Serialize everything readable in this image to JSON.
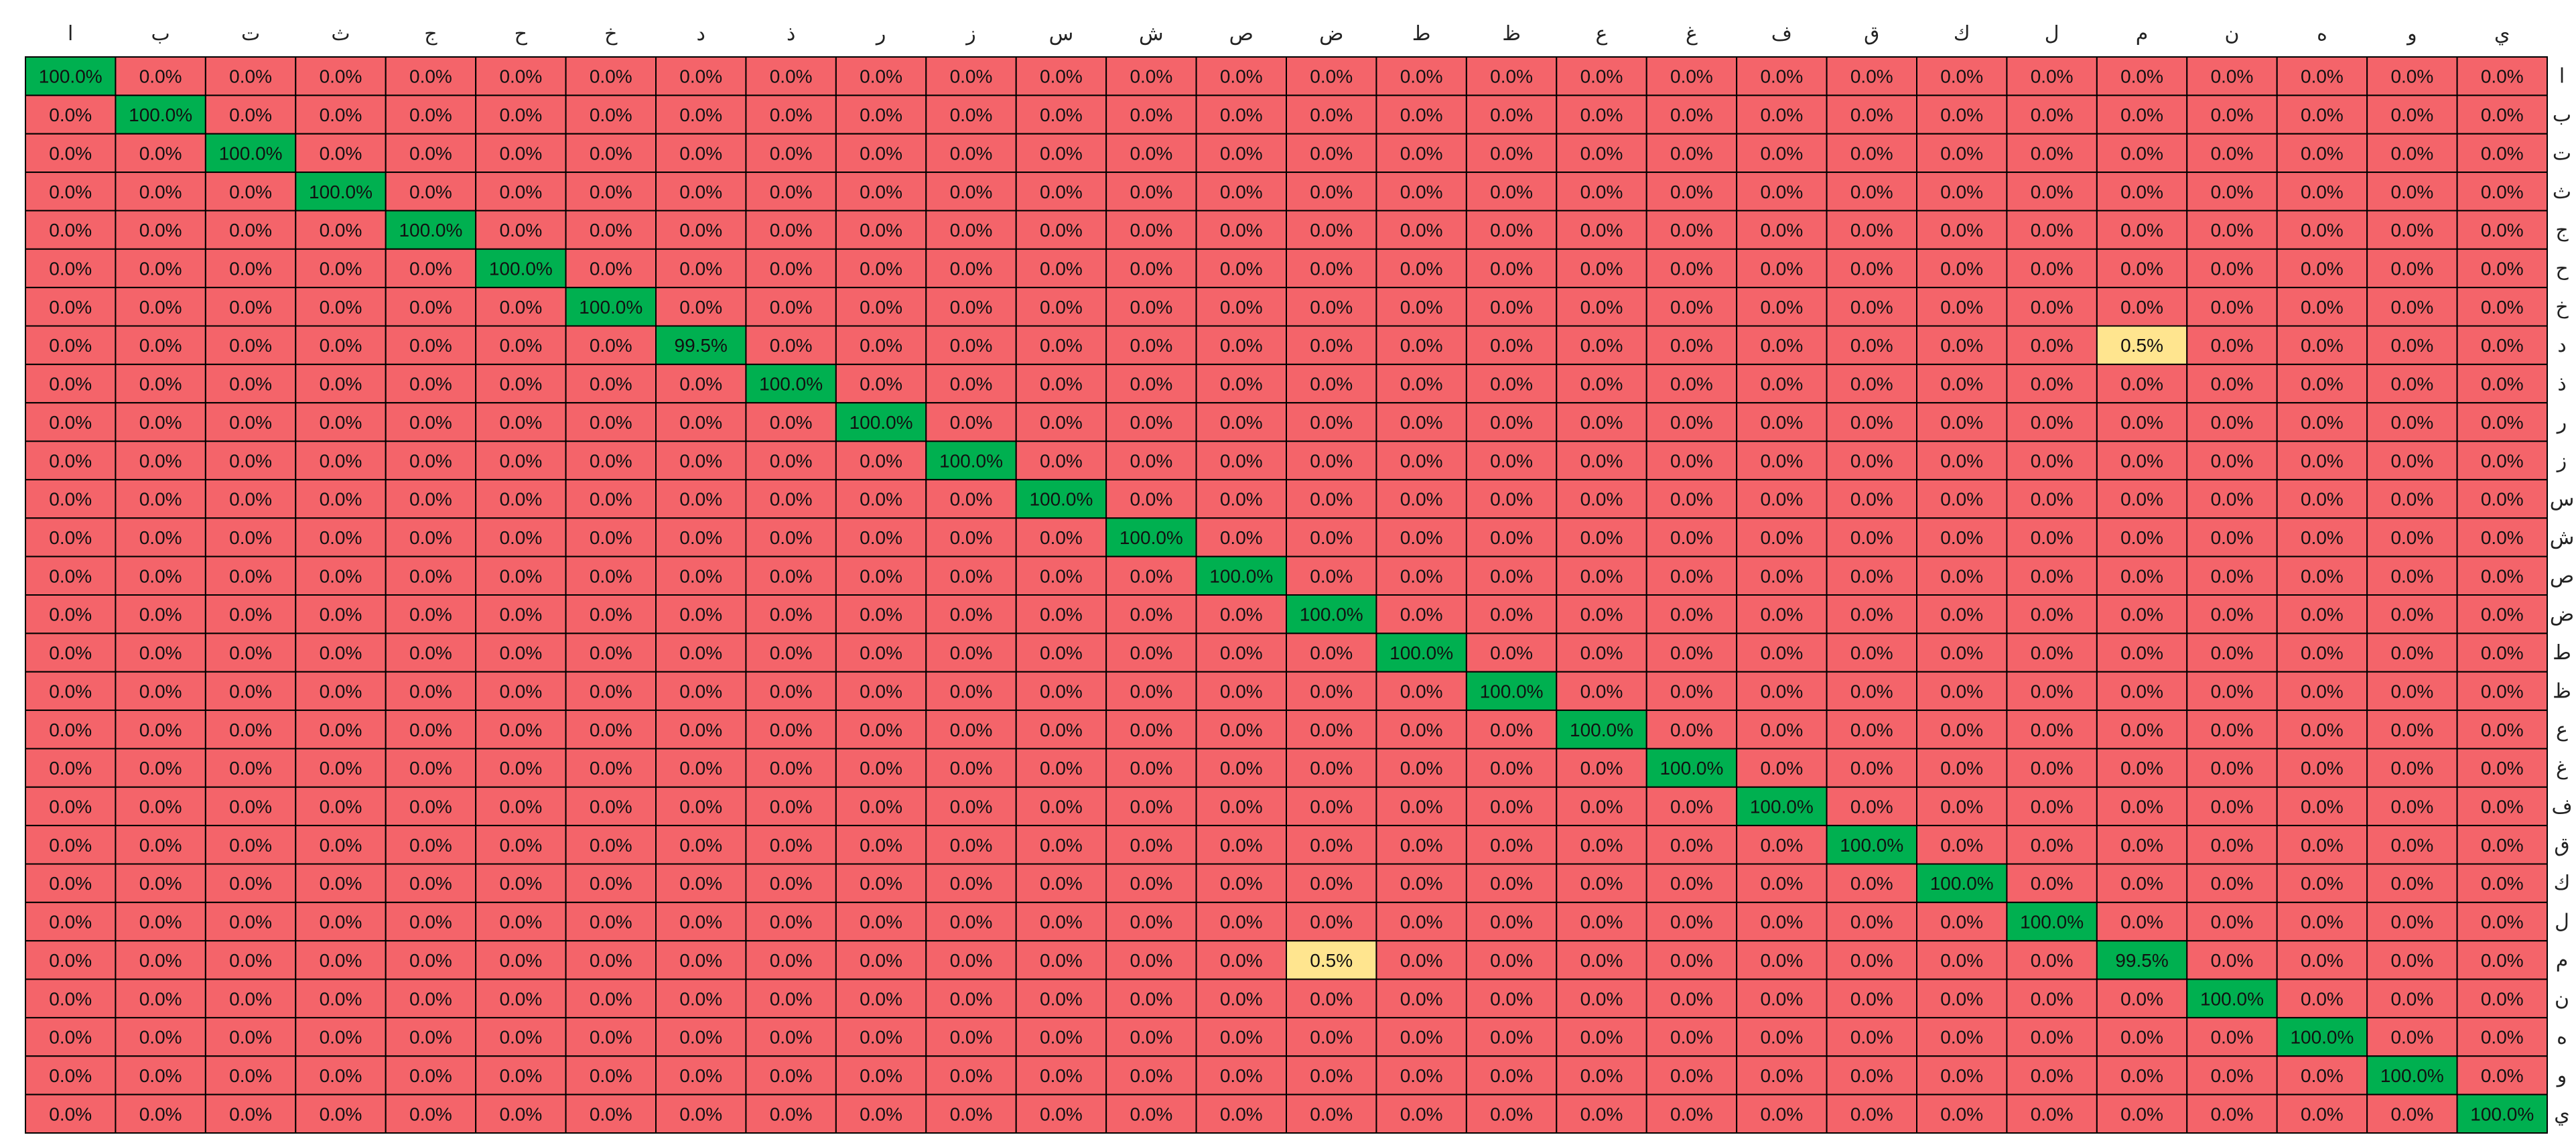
{
  "chart_data": {
    "type": "heatmap",
    "title": "",
    "xlabel": "",
    "ylabel": "",
    "columns": [
      "ا",
      "ب",
      "ت",
      "ث",
      "ج",
      "ح",
      "خ",
      "د",
      "ذ",
      "ر",
      "ز",
      "س",
      "ش",
      "ص",
      "ض",
      "ط",
      "ظ",
      "ع",
      "غ",
      "ف",
      "ق",
      "ك",
      "ل",
      "م",
      "ن",
      "ه",
      "و",
      "ي"
    ],
    "rows": [
      "ا",
      "ب",
      "ت",
      "ث",
      "ج",
      "ح",
      "خ",
      "د",
      "ذ",
      "ر",
      "ز",
      "س",
      "ش",
      "ص",
      "ض",
      "ط",
      "ظ",
      "ع",
      "غ",
      "ف",
      "ق",
      "ك",
      "ل",
      "م",
      "ن",
      "ه",
      "و",
      "ي"
    ],
    "default_value": "0.0%",
    "diagonal_value": "100.0%",
    "exceptions": [
      {
        "row": 7,
        "col": 7,
        "value": "99.5%"
      },
      {
        "row": 7,
        "col": 23,
        "value": "0.5%"
      },
      {
        "row": 23,
        "col": 23,
        "value": "99.5%"
      },
      {
        "row": 23,
        "col": 14,
        "value": "0.5%"
      }
    ],
    "colors": {
      "high": "#00b050",
      "mid": "#ffe58f",
      "low": "#f4646a",
      "border": "#000000"
    }
  }
}
